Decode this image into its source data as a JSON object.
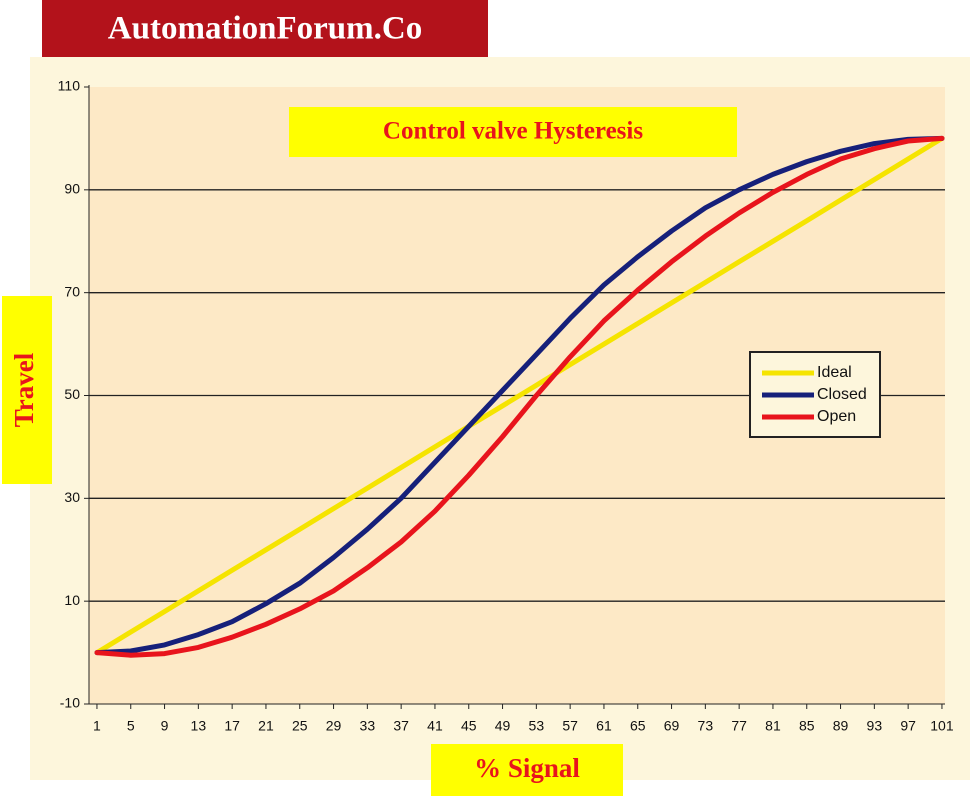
{
  "watermark": "AutomationForum.Co",
  "chart_data": {
    "type": "line",
    "title": "Control valve Hysteresis",
    "x_label": "% Signal",
    "y_label": "Travel",
    "x": [
      1,
      5,
      9,
      13,
      17,
      21,
      25,
      29,
      33,
      37,
      41,
      45,
      49,
      53,
      57,
      61,
      65,
      69,
      73,
      77,
      81,
      85,
      89,
      93,
      97,
      101
    ],
    "xlim": [
      0,
      102
    ],
    "xticks": [
      1,
      5,
      9,
      13,
      17,
      21,
      25,
      29,
      33,
      37,
      41,
      45,
      49,
      53,
      57,
      61,
      65,
      69,
      73,
      77,
      81,
      85,
      89,
      93,
      97,
      101
    ],
    "ylim": [
      -10,
      110
    ],
    "yticks": [
      -10,
      10,
      30,
      50,
      70,
      90,
      110
    ],
    "grid": true,
    "legend": "right",
    "series": [
      {
        "name": "Ideal",
        "color": "#f5e400",
        "values": [
          0,
          4,
          8,
          12,
          16,
          20,
          24,
          28,
          32,
          36,
          40,
          44,
          48,
          52,
          56,
          60,
          64,
          68,
          72,
          76,
          80,
          84,
          88,
          92,
          96,
          100
        ]
      },
      {
        "name": "Closed",
        "color": "#16207a",
        "values": [
          0,
          0.3,
          1.5,
          3.5,
          6,
          9.5,
          13.5,
          18.5,
          24,
          30,
          37,
          44,
          51,
          58,
          65,
          71.5,
          77,
          82,
          86.5,
          90,
          93,
          95.5,
          97.5,
          99,
          99.8,
          100
        ]
      },
      {
        "name": "Open",
        "color": "#e8141c",
        "values": [
          0,
          -0.5,
          -0.2,
          1,
          3,
          5.5,
          8.5,
          12,
          16.5,
          21.5,
          27.5,
          34.5,
          42,
          50,
          57.5,
          64.5,
          70.5,
          76,
          81,
          85.5,
          89.5,
          93,
          96,
          98,
          99.5,
          100
        ]
      }
    ]
  }
}
